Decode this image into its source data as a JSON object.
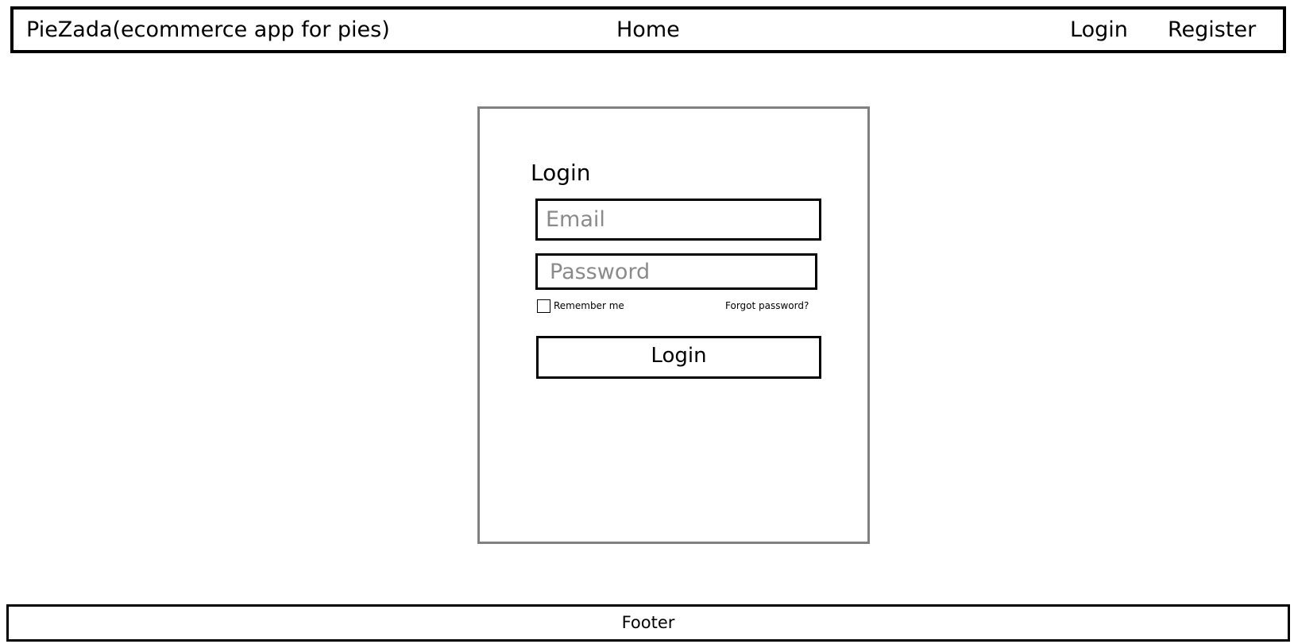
{
  "navbar": {
    "brand": "PieZada(ecommerce app for pies)",
    "home": "Home",
    "login": "Login",
    "register": "Register"
  },
  "login_form": {
    "title": "Login",
    "email_placeholder": "Email",
    "email_value": "",
    "password_placeholder": "Password",
    "password_value": "",
    "remember_label": "Remember me",
    "remember_checked": false,
    "forgot_label": "Forgot password?",
    "submit_label": "Login"
  },
  "footer": {
    "text": "Footer"
  },
  "colors": {
    "border": "#000000",
    "card_border": "#808080",
    "placeholder": "#8a8a8a",
    "background": "#ffffff"
  }
}
